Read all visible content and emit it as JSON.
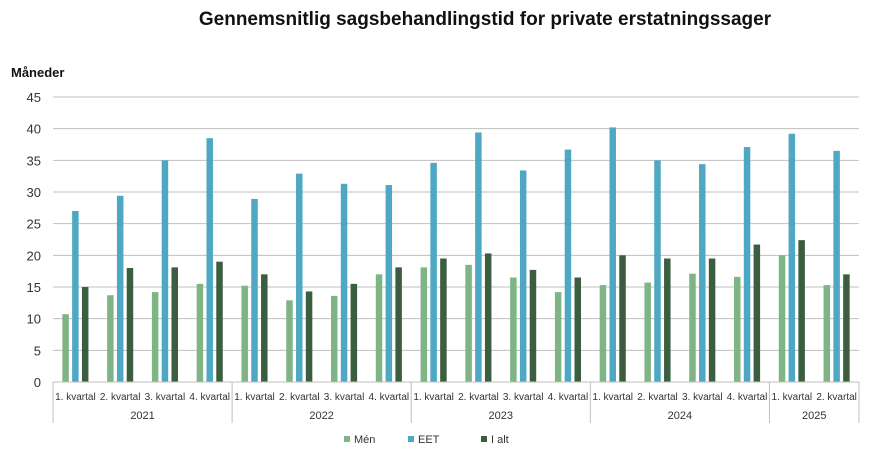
{
  "chart_data": {
    "type": "bar",
    "title": "Gennemsnitlig sagsbehandlingstid for private erstatningssager",
    "ylabel": "Måneder",
    "xlabel": "",
    "ylim": [
      0,
      45
    ],
    "yticks": [
      0,
      5,
      10,
      15,
      20,
      25,
      30,
      35,
      40,
      45
    ],
    "grid": true,
    "legend_position": "bottom",
    "groups": [
      {
        "year": "2021",
        "categories": [
          "1. kvartal",
          "2. kvartal",
          "3. kvartal",
          "4. kvartal"
        ]
      },
      {
        "year": "2022",
        "categories": [
          "1. kvartal",
          "2. kvartal",
          "3. kvartal",
          "4. kvartal"
        ]
      },
      {
        "year": "2023",
        "categories": [
          "1. kvartal",
          "2. kvartal",
          "3. kvartal",
          "4. kvartal"
        ]
      },
      {
        "year": "2024",
        "categories": [
          "1. kvartal",
          "2. kvartal",
          "3. kvartal",
          "4. kvartal"
        ]
      },
      {
        "year": "2025",
        "categories": [
          "1. kvartal",
          "2. kvartal"
        ]
      }
    ],
    "series": [
      {
        "name": "Mén",
        "color": "#7fb584",
        "values": [
          10.7,
          13.7,
          14.2,
          15.5,
          15.2,
          12.9,
          13.6,
          17.0,
          18.1,
          18.5,
          16.5,
          14.2,
          15.3,
          15.7,
          17.1,
          16.6,
          20.0,
          15.3
        ]
      },
      {
        "name": "EET",
        "color": "#4ea8c4",
        "values": [
          27.0,
          29.4,
          35.0,
          38.5,
          28.9,
          32.9,
          31.3,
          31.1,
          34.6,
          39.4,
          33.4,
          36.7,
          40.2,
          35.0,
          34.4,
          37.1,
          39.2,
          36.5
        ]
      },
      {
        "name": "I alt",
        "color": "#3a5e3f",
        "values": [
          15.0,
          18.0,
          18.1,
          19.0,
          17.0,
          14.3,
          15.5,
          18.1,
          19.5,
          20.3,
          17.7,
          16.5,
          20.0,
          19.5,
          19.5,
          21.7,
          22.4,
          17.0
        ]
      }
    ]
  }
}
